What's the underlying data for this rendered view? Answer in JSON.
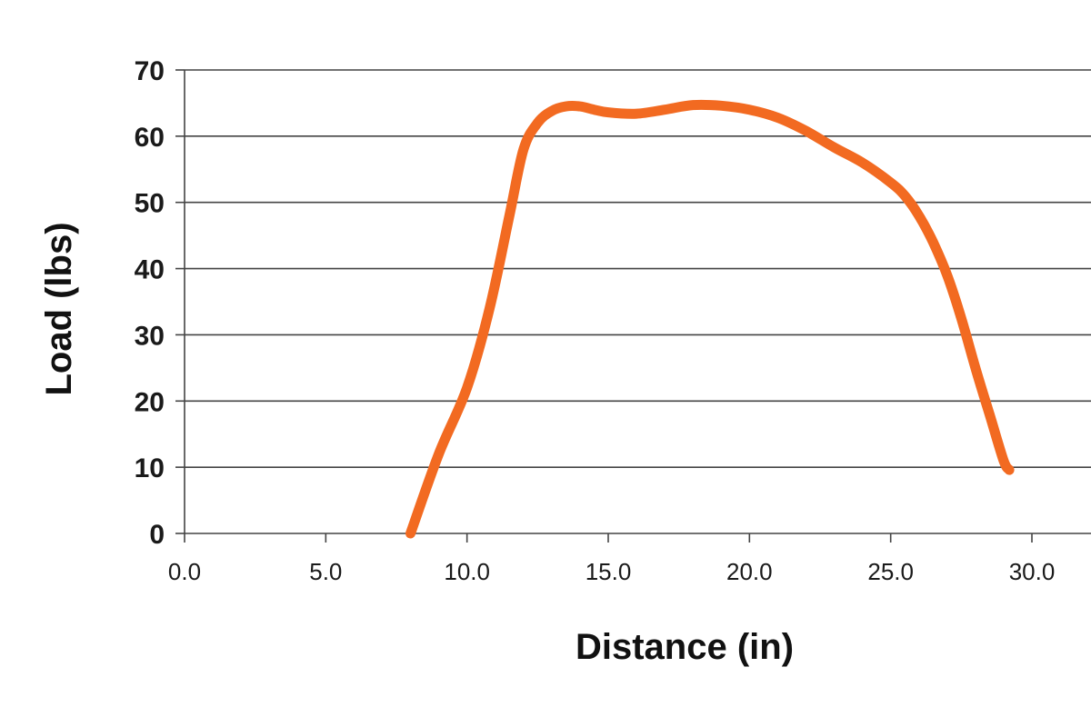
{
  "chart_data": {
    "type": "line",
    "title": "",
    "xlabel": "Distance (in)",
    "ylabel": "Load (lbs)",
    "xlim": [
      0,
      30
    ],
    "ylim": [
      0,
      70
    ],
    "xticks": [
      "0.0",
      "5.0",
      "10.0",
      "15.0",
      "20.0",
      "25.0",
      "30.0"
    ],
    "yticks": [
      "0",
      "10",
      "20",
      "30",
      "40",
      "50",
      "60",
      "70"
    ],
    "grid": "horizontal",
    "legend": "none",
    "series": [
      {
        "color": "#f26a21",
        "x": [
          8.0,
          9.0,
          10.0,
          10.8,
          11.5,
          12.0,
          12.5,
          13.0,
          13.5,
          14.0,
          14.5,
          15.0,
          16.0,
          17.0,
          18.0,
          19.0,
          20.0,
          21.0,
          22.0,
          23.0,
          24.0,
          25.0,
          25.5,
          26.0,
          26.5,
          27.0,
          27.5,
          28.0,
          28.5,
          29.0,
          29.2
        ],
        "y": [
          0,
          12,
          22,
          34,
          48,
          58,
          62,
          63.8,
          64.5,
          64.5,
          64.0,
          63.6,
          63.4,
          64.0,
          64.7,
          64.6,
          64.0,
          62.8,
          60.8,
          58.3,
          56.0,
          53.0,
          51.0,
          48.0,
          44.0,
          39.0,
          32.5,
          25.0,
          18.0,
          11.0,
          9.6
        ]
      }
    ]
  }
}
